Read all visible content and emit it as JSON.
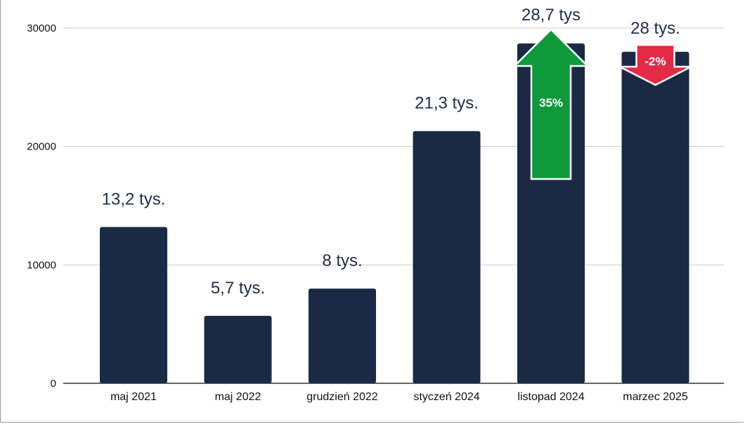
{
  "chart_data": {
    "type": "bar",
    "categories": [
      "maj 2021",
      "maj 2022",
      "grudzień 2022",
      "styczeń 2024",
      "listopad 2024",
      "marzec 2025"
    ],
    "values": [
      13200,
      5700,
      8000,
      21300,
      28700,
      28000
    ],
    "data_labels": [
      "13,2 tys.",
      "5,7 tys.",
      "8 tys.",
      "21,3 tys.",
      "28,7 tys",
      "28 tys."
    ],
    "ylim": [
      0,
      30000
    ],
    "yticks": [
      0,
      10000,
      20000,
      30000
    ],
    "ytick_labels": [
      "0",
      "10000",
      "20000",
      "30000"
    ],
    "grid": true,
    "bar_color": "#1b2a44",
    "annotations": [
      {
        "category": "listopad 2024",
        "direction": "up",
        "text": "35%",
        "color": "#0e9a3a"
      },
      {
        "category": "marzec 2025",
        "direction": "down",
        "text": "-2%",
        "color": "#e52a46"
      }
    ]
  }
}
